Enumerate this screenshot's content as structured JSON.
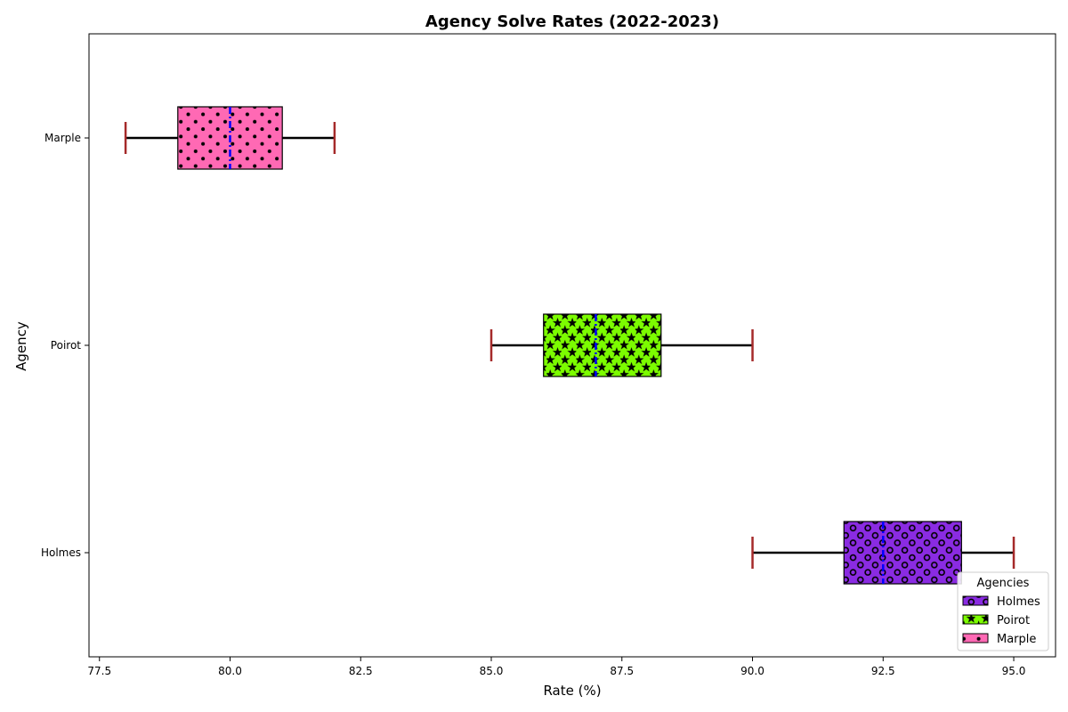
{
  "chart_data": {
    "type": "boxplot",
    "orientation": "horizontal",
    "title": "Agency Solve Rates (2022-2023)",
    "xlabel": "Rate (%)",
    "ylabel": "Agency",
    "xlim": [
      77.3,
      95.8
    ],
    "xticks": [
      "77.5",
      "80.0",
      "82.5",
      "85.0",
      "87.5",
      "90.0",
      "92.5",
      "95.0"
    ],
    "xtick_values": [
      77.5,
      80.0,
      82.5,
      85.0,
      87.5,
      90.0,
      92.5,
      95.0
    ],
    "categories": [
      "Holmes",
      "Poirot",
      "Marple"
    ],
    "series": [
      {
        "name": "Holmes",
        "color": "#8a2be2",
        "pattern": "circles",
        "whisker_low": 90.0,
        "q1": 91.75,
        "median": 92.5,
        "q3": 94.0,
        "whisker_high": 95.0
      },
      {
        "name": "Poirot",
        "color": "#7cfc00",
        "pattern": "stars",
        "whisker_low": 85.0,
        "q1": 86.0,
        "median": 87.0,
        "q3": 88.25,
        "whisker_high": 90.0
      },
      {
        "name": "Marple",
        "color": "#ff69b4",
        "pattern": "dots",
        "whisker_low": 78.0,
        "q1": 79.0,
        "median": 80.0,
        "q3": 81.0,
        "whisker_high": 82.0
      }
    ],
    "median_color": "#0000ff",
    "cap_color": "#a52a2a",
    "legend": {
      "title": "Agencies",
      "location": "lower-right"
    },
    "grid": false
  }
}
